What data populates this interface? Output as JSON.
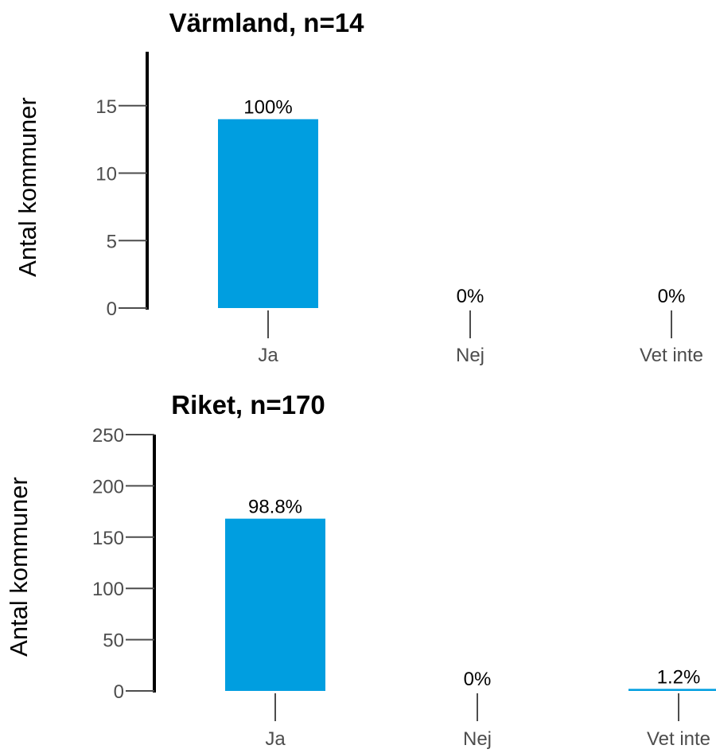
{
  "chart_data": [
    {
      "type": "bar",
      "title": "Värmland, n=14",
      "ylabel": "Antal kommuner",
      "categories": [
        "Ja",
        "Nej",
        "Vet inte"
      ],
      "values": [
        14,
        0,
        0
      ],
      "labels": [
        "100%",
        "0%",
        "0%"
      ],
      "yticks": [
        0,
        5,
        10,
        15
      ],
      "ylim": [
        0,
        19
      ],
      "color": "#009ee0",
      "grid": false
    },
    {
      "type": "bar",
      "title": "Riket, n=170",
      "ylabel": "Antal kommuner",
      "categories": [
        "Ja",
        "Nej",
        "Vet inte"
      ],
      "values": [
        168,
        0,
        2
      ],
      "labels": [
        "98.8%",
        "0%",
        "1.2%"
      ],
      "yticks": [
        0,
        50,
        100,
        150,
        200,
        250
      ],
      "ylim": [
        0,
        250
      ],
      "color": "#009ee0",
      "grid": false
    }
  ]
}
